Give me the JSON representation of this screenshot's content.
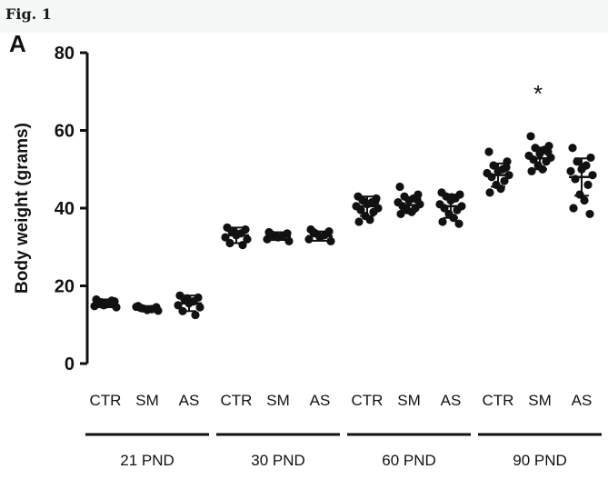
{
  "figure": {
    "label": "Fig. 1",
    "panel": "A"
  },
  "chart_data": {
    "type": "scatter",
    "ylabel": "Body weight (grams)",
    "ylim": [
      0,
      80
    ],
    "yticks": [
      "0",
      "20",
      "40",
      "60",
      "80"
    ],
    "groups": [
      {
        "label": "21 PND",
        "categories": [
          {
            "name": "CTR",
            "mean": 15.5,
            "sd": 1.0,
            "points": [
              16.5,
              16,
              15.8,
              15.5,
              15.2,
              14.8,
              14.5,
              15.8,
              16.2,
              15
            ]
          },
          {
            "name": "SM",
            "mean": 14.2,
            "sd": 0.6,
            "points": [
              14.8,
              14.5,
              14.2,
              14,
              13.8,
              14.6,
              13.6,
              14.3
            ]
          },
          {
            "name": "AS",
            "mean": 15.5,
            "sd": 2.0,
            "points": [
              17.5,
              17,
              16.5,
              16,
              15.5,
              15,
              14.5,
              13.5,
              12.5,
              16.8
            ]
          }
        ]
      },
      {
        "label": "30 PND",
        "categories": [
          {
            "name": "CTR",
            "mean": 33,
            "sd": 2.0,
            "points": [
              35,
              34.5,
              34,
              33.5,
              33,
              32.5,
              32,
              31,
              30.5,
              33.8
            ]
          },
          {
            "name": "SM",
            "mean": 32.8,
            "sd": 1.0,
            "points": [
              33.8,
              33.5,
              33,
              32.8,
              32.5,
              32,
              31.5,
              33.2
            ]
          },
          {
            "name": "AS",
            "mean": 32.8,
            "sd": 1.2,
            "points": [
              34.5,
              34,
              33.5,
              33,
              32.5,
              32,
              31.5,
              33.8
            ]
          }
        ]
      },
      {
        "label": "60 PND",
        "categories": [
          {
            "name": "CTR",
            "mean": 40.5,
            "sd": 2.5,
            "points": [
              43,
              42.5,
              42,
              41.5,
              41,
              40.5,
              40,
              39.5,
              39,
              38,
              37,
              36.5,
              41.8
            ]
          },
          {
            "name": "SM",
            "mean": 40.8,
            "sd": 1.8,
            "points": [
              45.5,
              43.5,
              43,
              42.5,
              42,
              41.5,
              41,
              40.5,
              40,
              39.5,
              39,
              38.5,
              42.2
            ]
          },
          {
            "name": "AS",
            "mean": 40.5,
            "sd": 3.0,
            "points": [
              44,
              43.5,
              43,
              42.5,
              42,
              41,
              40.5,
              40,
              39.5,
              38.5,
              37.5,
              36.5,
              36,
              42.8
            ]
          }
        ]
      },
      {
        "label": "90 PND",
        "categories": [
          {
            "name": "CTR",
            "mean": 48.5,
            "sd": 3.0,
            "points": [
              54.5,
              52,
              51,
              50,
              49.5,
              49,
              48.5,
              48,
              47,
              46,
              45,
              44,
              50.5
            ]
          },
          {
            "name": "SM",
            "mean": 52.8,
            "sd": 2.8,
            "points": [
              58.5,
              56,
              55.5,
              55,
              54,
              53.5,
              53,
              52.5,
              52,
              51,
              50,
              49.5,
              54.5
            ],
            "annotation": "*"
          },
          {
            "name": "AS",
            "mean": 48,
            "sd": 4.8,
            "points": [
              55.5,
              53,
              52,
              51,
              50,
              49.5,
              48.5,
              47.5,
              46,
              43.5,
              42,
              40,
              38.5,
              50.5
            ]
          }
        ]
      }
    ],
    "grid": false,
    "legend": "none"
  }
}
